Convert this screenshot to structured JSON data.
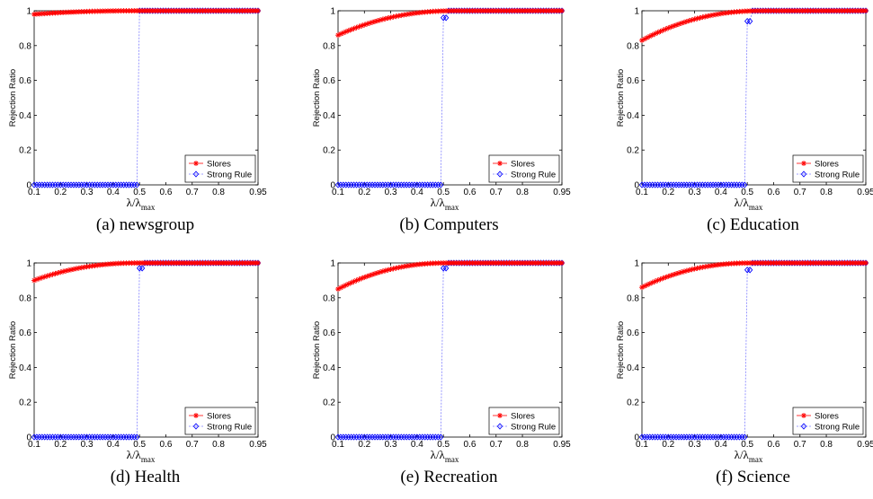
{
  "figure": {
    "xlabel": "λ/λmax",
    "ylabel": "Rejection Ratio",
    "x_ticks": [
      "0.1",
      "0.2",
      "0.3",
      "0.4",
      "0.5",
      "0.6",
      "0.7",
      "0.8",
      "0.95"
    ],
    "y_ticks": [
      "0",
      "0.2",
      "0.4",
      "0.6",
      "0.8",
      "1"
    ],
    "legend": [
      "Slores",
      "Strong Rule"
    ],
    "colors": {
      "slores": "#ff0000",
      "strong_rule": "#0000ff",
      "strong_line": "#8080ff"
    }
  },
  "chart_data": [
    {
      "type": "line",
      "caption": "(a) newsgroup",
      "title": "",
      "xlabel": "λ/λmax",
      "ylabel": "Rejection Ratio",
      "xlim": [
        0.1,
        0.95
      ],
      "ylim": [
        0,
        1
      ],
      "legend_position": "bottom-right",
      "series": [
        {
          "name": "Slores",
          "marker": "star",
          "color": "#ff0000",
          "x_range": [
            0.1,
            0.95
          ],
          "curve": {
            "start": 0.98,
            "plateau_at": 0.5,
            "plateau": 1.0
          }
        },
        {
          "name": "Strong Rule",
          "marker": "diamond",
          "color": "#0000ff",
          "x_range": [
            0.1,
            0.95
          ],
          "step_at": 0.5,
          "low": 0.0,
          "first_after_step": 1.0,
          "high": 1.0
        }
      ]
    },
    {
      "type": "line",
      "caption": "(b) Computers",
      "title": "",
      "xlabel": "λ/λmax",
      "ylabel": "Rejection Ratio",
      "xlim": [
        0.1,
        0.95
      ],
      "ylim": [
        0,
        1
      ],
      "legend_position": "bottom-right",
      "series": [
        {
          "name": "Slores",
          "marker": "star",
          "color": "#ff0000",
          "x_range": [
            0.1,
            0.95
          ],
          "curve": {
            "start": 0.86,
            "plateau_at": 0.55,
            "plateau": 1.0
          }
        },
        {
          "name": "Strong Rule",
          "marker": "diamond",
          "color": "#0000ff",
          "x_range": [
            0.1,
            0.95
          ],
          "step_at": 0.5,
          "low": 0.0,
          "first_after_step": 0.96,
          "high": 1.0
        }
      ]
    },
    {
      "type": "line",
      "caption": "(c) Education",
      "title": "",
      "xlabel": "λ/λmax",
      "ylabel": "Rejection Ratio",
      "xlim": [
        0.1,
        0.95
      ],
      "ylim": [
        0,
        1
      ],
      "legend_position": "bottom-right",
      "series": [
        {
          "name": "Slores",
          "marker": "star",
          "color": "#ff0000",
          "x_range": [
            0.1,
            0.95
          ],
          "curve": {
            "start": 0.83,
            "plateau_at": 0.56,
            "plateau": 1.0
          }
        },
        {
          "name": "Strong Rule",
          "marker": "diamond",
          "color": "#0000ff",
          "x_range": [
            0.1,
            0.95
          ],
          "step_at": 0.5,
          "low": 0.0,
          "first_after_step": 0.94,
          "high": 1.0
        }
      ]
    },
    {
      "type": "line",
      "caption": "(d) Health",
      "title": "",
      "xlabel": "λ/λmax",
      "ylabel": "Rejection Ratio",
      "xlim": [
        0.1,
        0.95
      ],
      "ylim": [
        0,
        1
      ],
      "legend_position": "bottom-right",
      "series": [
        {
          "name": "Slores",
          "marker": "star",
          "color": "#ff0000",
          "x_range": [
            0.1,
            0.95
          ],
          "curve": {
            "start": 0.9,
            "plateau_at": 0.5,
            "plateau": 1.0
          }
        },
        {
          "name": "Strong Rule",
          "marker": "diamond",
          "color": "#0000ff",
          "x_range": [
            0.1,
            0.95
          ],
          "step_at": 0.5,
          "low": 0.0,
          "first_after_step": 0.97,
          "high": 1.0
        }
      ]
    },
    {
      "type": "line",
      "caption": "(e) Recreation",
      "title": "",
      "xlabel": "λ/λmax",
      "ylabel": "Rejection Ratio",
      "xlim": [
        0.1,
        0.95
      ],
      "ylim": [
        0,
        1
      ],
      "legend_position": "bottom-right",
      "series": [
        {
          "name": "Slores",
          "marker": "star",
          "color": "#ff0000",
          "x_range": [
            0.1,
            0.95
          ],
          "curve": {
            "start": 0.85,
            "plateau_at": 0.52,
            "plateau": 1.0
          }
        },
        {
          "name": "Strong Rule",
          "marker": "diamond",
          "color": "#0000ff",
          "x_range": [
            0.1,
            0.95
          ],
          "step_at": 0.5,
          "low": 0.0,
          "first_after_step": 0.97,
          "high": 1.0
        }
      ]
    },
    {
      "type": "line",
      "caption": "(f) Science",
      "title": "",
      "xlabel": "λ/λmax",
      "ylabel": "Rejection Ratio",
      "xlim": [
        0.1,
        0.95
      ],
      "ylim": [
        0,
        1
      ],
      "legend_position": "bottom-right",
      "series": [
        {
          "name": "Slores",
          "marker": "star",
          "color": "#ff0000",
          "x_range": [
            0.1,
            0.95
          ],
          "curve": {
            "start": 0.86,
            "plateau_at": 0.52,
            "plateau": 1.0
          }
        },
        {
          "name": "Strong Rule",
          "marker": "diamond",
          "color": "#0000ff",
          "x_range": [
            0.1,
            0.95
          ],
          "step_at": 0.5,
          "low": 0.0,
          "first_after_step": 0.96,
          "high": 1.0
        }
      ]
    }
  ]
}
